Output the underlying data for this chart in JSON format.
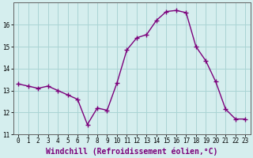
{
  "x": [
    0,
    1,
    2,
    3,
    4,
    5,
    6,
    7,
    8,
    9,
    10,
    11,
    12,
    13,
    14,
    15,
    16,
    17,
    18,
    19,
    20,
    21,
    22,
    23
  ],
  "y": [
    13.3,
    13.2,
    13.1,
    13.2,
    13.0,
    12.8,
    12.6,
    11.45,
    12.2,
    12.1,
    13.35,
    14.85,
    15.4,
    15.55,
    16.2,
    16.6,
    16.65,
    16.55,
    15.0,
    14.35,
    13.4,
    12.15,
    11.7,
    11.7
  ],
  "line_color": "#7b007b",
  "marker": "+",
  "marker_size": 4,
  "background_color": "#d5eeee",
  "grid_color": "#aad4d4",
  "xlabel": "Windchill (Refroidissement éolien,°C)",
  "xlabel_fontsize": 7,
  "ylim": [
    11,
    17
  ],
  "xlim": [
    -0.5,
    23.5
  ],
  "yticks": [
    11,
    12,
    13,
    14,
    15,
    16
  ],
  "xticks": [
    0,
    1,
    2,
    3,
    4,
    5,
    6,
    7,
    8,
    9,
    10,
    11,
    12,
    13,
    14,
    15,
    16,
    17,
    18,
    19,
    20,
    21,
    22,
    23
  ],
  "tick_fontsize": 5.5,
  "spine_color": "#606060",
  "linewidth": 1.0,
  "markeredgewidth": 1.0
}
